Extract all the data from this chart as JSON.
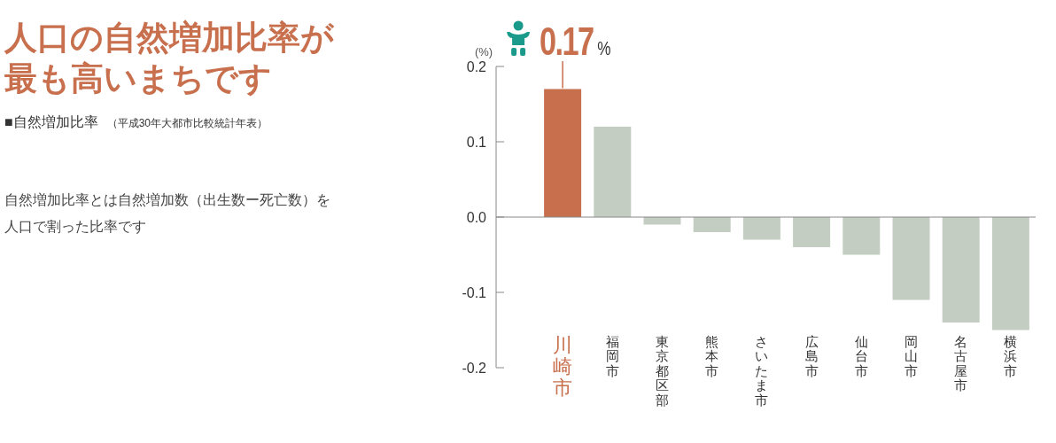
{
  "chart_data": {
    "type": "bar",
    "title": "人口の自然増加比率が最も高いまちです",
    "subtitle": "■自然増加比率",
    "ylabel": "(%)",
    "categories": [
      "川崎市",
      "福岡市",
      "東京都区部",
      "熊本市",
      "さいたま市",
      "広島市",
      "仙台市",
      "岡山市",
      "名古屋市",
      "横浜市"
    ],
    "values": [
      0.17,
      0.12,
      -0.01,
      -0.02,
      -0.03,
      -0.04,
      -0.05,
      -0.11,
      -0.14,
      -0.15
    ],
    "colors": [
      "#c8704e",
      "#c4cdc2",
      "#c4cdc2",
      "#c4cdc2",
      "#c4cdc2",
      "#c4cdc2",
      "#c4cdc2",
      "#c4cdc2",
      "#c4cdc2",
      "#c4cdc2"
    ],
    "ylim": [
      -0.2,
      0.2
    ],
    "yticks": [
      -0.2,
      -0.1,
      {
        "value": 0,
        "label": "0.0"
      },
      0.1,
      0.2
    ],
    "annotations": [
      "（平成30年大都市比較統計年表）",
      "自然増加比率とは自然増加数（出生数ー死亡数）を人口で割った比率です",
      {
        "text": "0.17%",
        "x": "川崎市",
        "y": 0.17
      }
    ]
  }
}
